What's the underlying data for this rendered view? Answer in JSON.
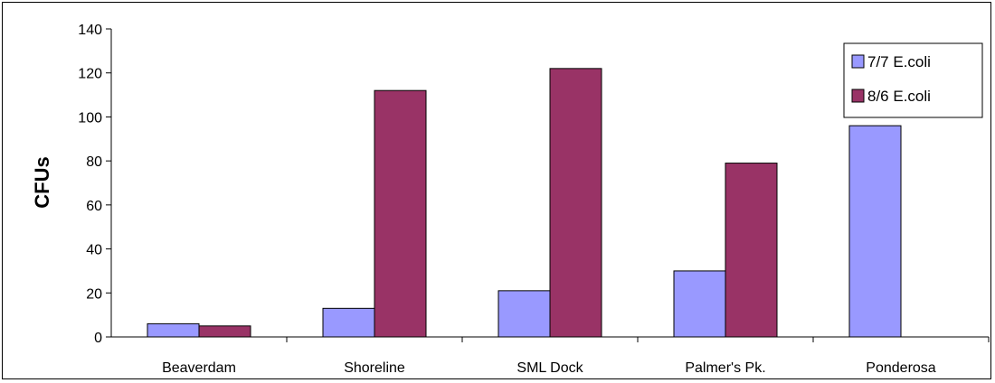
{
  "chart_data": {
    "type": "bar",
    "title": "",
    "xlabel": "",
    "ylabel": "CFUs",
    "categories": [
      "Beaverdam",
      "Shoreline",
      "SML Dock",
      "Palmer's Pk.",
      "Ponderosa"
    ],
    "series": [
      {
        "name": "7/7 E.coli",
        "color": "#9999ff",
        "values": [
          6,
          13,
          21,
          30,
          96
        ]
      },
      {
        "name": "8/6 E.coli",
        "color": "#993366",
        "values": [
          5,
          112,
          122,
          79,
          null
        ]
      }
    ],
    "ylim": [
      0,
      140
    ],
    "yticks": [
      0,
      20,
      40,
      60,
      80,
      100,
      120,
      140
    ],
    "grid": false,
    "legend_position": "top-right"
  }
}
